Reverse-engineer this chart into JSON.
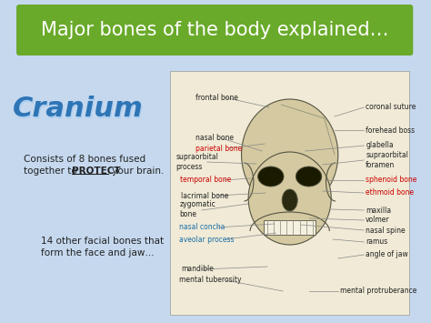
{
  "title": "Major bones of the body explained…",
  "title_bg_color": "#6aaa2a",
  "title_text_color": "#ffffff",
  "slide_bg_color": "#c5d8ee",
  "cranium_text": "Cranium",
  "cranium_color": "#2e75b6",
  "skull_box_bg": "#f0ead6",
  "body_text_line1": "Consists of 8 bones fused",
  "body_text_line2a": "together to ",
  "body_text_protect": "PROTECT",
  "body_text_line2b": " your brain.",
  "body_text_line3": "14 other facial bones that",
  "body_text_line4": "form the face and jaw…",
  "label_color_black": "#222222",
  "label_color_red": "#cc0000",
  "label_color_blue": "#1a6eaa",
  "line_color": "#888888",
  "frontal_bone": "frontal bone",
  "nasal_bone": "nasal bone",
  "parietal_bone": "parietal bone",
  "supraorbital_process": "supraorbital\nprocess",
  "temporal_bone": "temporal bone",
  "lacrimal_bone": "lacrimal bone",
  "zygomatic_bone": "zygomatic\nbone",
  "nasal_concha": "nasal concha",
  "aveolar_process": "aveolar process",
  "mandible": "mandible",
  "mental_tuberosity": "mental tuberosity",
  "coronal_suture": "coronal suture",
  "forehead_boss": "forehead boss",
  "glabella": "glabella",
  "supraorbital_foramen": "supraorbital\nforamen",
  "sphenoid_bone": "sphenoid bone",
  "ethmoid_bone": "ethmoid bone",
  "maxilla": "maxilla",
  "volmer": "volmer",
  "nasal_spine": "nasal spine",
  "ramus": "ramus",
  "angle_of_jaw": "angle of jaw",
  "mental_protruberance": "mental protruberance"
}
